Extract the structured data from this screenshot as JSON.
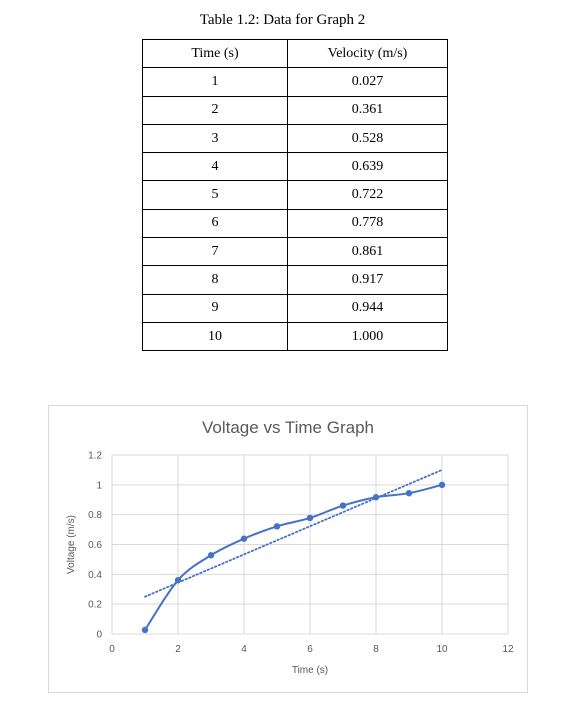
{
  "table": {
    "caption": "Table 1.2: Data for Graph 2",
    "headers": [
      "Time (s)",
      "Velocity (m/s)"
    ],
    "rows": [
      [
        "1",
        "0.027"
      ],
      [
        "2",
        "0.361"
      ],
      [
        "3",
        "0.528"
      ],
      [
        "4",
        "0.639"
      ],
      [
        "5",
        "0.722"
      ],
      [
        "6",
        "0.778"
      ],
      [
        "7",
        "0.861"
      ],
      [
        "8",
        "0.917"
      ],
      [
        "9",
        "0.944"
      ],
      [
        "10",
        "1.000"
      ]
    ]
  },
  "chart_data": {
    "type": "scatter",
    "title": "Voltage vs Time Graph",
    "xlabel": "Time (s)",
    "ylabel": "Voltage (m/s)",
    "xlim": [
      0,
      12
    ],
    "ylim": [
      0,
      1.2
    ],
    "x_ticks": [
      0,
      2,
      4,
      6,
      8,
      10,
      12
    ],
    "y_ticks": [
      0,
      0.2,
      0.4,
      0.6,
      0.8,
      1,
      1.2
    ],
    "x_tick_labels": [
      "0",
      "2",
      "4",
      "6",
      "8",
      "10",
      "12"
    ],
    "y_tick_labels": [
      "0",
      "0.2",
      "0.4",
      "0.6",
      "0.8",
      "1",
      "1.2"
    ],
    "grid": true,
    "legend": "none",
    "series": [
      {
        "x": [
          1,
          2,
          3,
          4,
          5,
          6,
          7,
          8,
          9,
          10
        ],
        "y": [
          0.027,
          0.361,
          0.528,
          0.639,
          0.722,
          0.778,
          0.861,
          0.917,
          0.944,
          1.0
        ],
        "color": "#4472c4",
        "line": "smooth",
        "markers": true
      }
    ],
    "trendline": {
      "type": "linear",
      "x": [
        1,
        10
      ],
      "y": [
        0.25,
        1.1
      ],
      "style": "dotted",
      "color": "#4472c4"
    }
  }
}
